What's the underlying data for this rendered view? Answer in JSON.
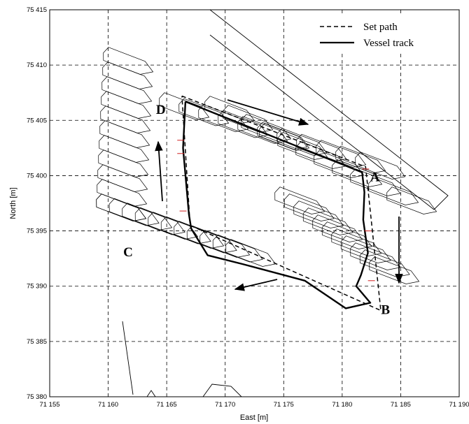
{
  "chart_data": {
    "type": "line",
    "xlabel": "East [m]",
    "ylabel": "North [m]",
    "xlim": [
      71155,
      71190
    ],
    "ylim": [
      75380,
      75415
    ],
    "grid": true,
    "x_ticks": [
      71155,
      71160,
      71165,
      71170,
      71175,
      71180,
      71185,
      71190
    ],
    "y_ticks": [
      75380,
      75385,
      75390,
      75395,
      75400,
      75405,
      75410,
      75415
    ],
    "x_tick_labels": [
      "71 155",
      "71 160",
      "71 165",
      "71 170",
      "71 175",
      "71 180",
      "71 185",
      "71 190"
    ],
    "y_tick_labels": [
      "75 380",
      "75 385",
      "75 390",
      "75 395",
      "75 400",
      "75 405",
      "75 410",
      "75 415"
    ],
    "legend_position": "top-right",
    "series": [
      {
        "name": "Set path",
        "style": "dashed",
        "x": [
          71166.3,
          71182.0,
          71183.3,
          71167.0,
          71166.3
        ],
        "y": [
          75407.2,
          75400.8,
          75387.8,
          75395.5,
          75407.2
        ]
      },
      {
        "name": "Vessel track",
        "style": "solid",
        "x": [
          71166.6,
          71181.7,
          71181.9,
          71181.8,
          71182.2,
          71181.6,
          71181.2,
          71182.4,
          71180.3,
          71176.8,
          71171.5,
          71168.5,
          71167.1,
          71166.9,
          71166.4,
          71166.6
        ],
        "y": [
          75406.7,
          75400.3,
          75398.5,
          75396.0,
          75393.0,
          75391.0,
          75390.0,
          75388.5,
          75388.0,
          75390.5,
          75392.0,
          75392.8,
          75395.2,
          75396.5,
          75402.5,
          75406.7
        ]
      }
    ],
    "annotations": [
      {
        "text": "A",
        "x": 71182.8,
        "y": 75399.5
      },
      {
        "text": "B",
        "x": 71183.7,
        "y": 75387.5
      },
      {
        "text": "C",
        "x": 71161.7,
        "y": 75392.7
      },
      {
        "text": "D",
        "x": 71164.5,
        "y": 75405.6
      }
    ]
  }
}
